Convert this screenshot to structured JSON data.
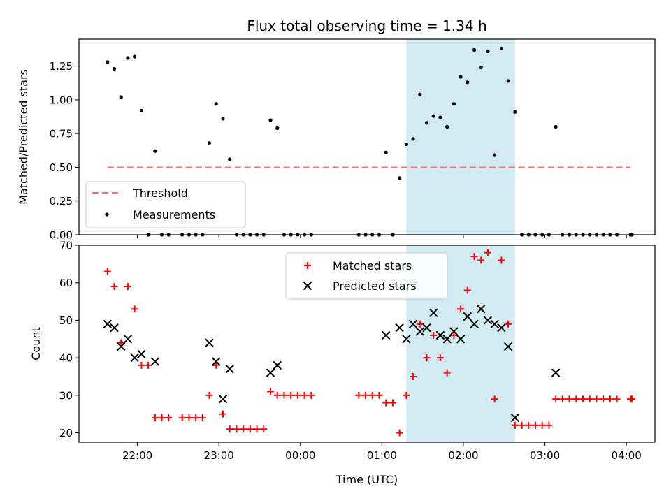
{
  "chart_data": [
    {
      "type": "scatter",
      "title": "Flux total observing time = 1.34 h",
      "xlabel": "",
      "ylabel": "Matched/Predicted stars",
      "xlim": [
        "21:17",
        "04:21"
      ],
      "ylim": [
        0,
        1.45
      ],
      "yticks": [
        "0.00",
        "0.25",
        "0.50",
        "0.75",
        "1.00",
        "1.25"
      ],
      "grid": false,
      "legend_placement": "lower-left",
      "highlight_span": {
        "x0": "01:18",
        "x1": "02:38",
        "color": "#add8e6"
      },
      "threshold": {
        "name": "Threshold",
        "y": 0.5,
        "x0": "21:38",
        "x1": "04:03",
        "color": "#ff7070"
      },
      "series": [
        {
          "name": "Measurements",
          "color": "#000000",
          "points": [
            [
              "21:38",
              1.28
            ],
            [
              "21:43",
              1.23
            ],
            [
              "21:48",
              1.02
            ],
            [
              "21:53",
              1.31
            ],
            [
              "21:58",
              1.32
            ],
            [
              "22:03",
              0.92
            ],
            [
              "22:08",
              0.0
            ],
            [
              "22:13",
              0.62
            ],
            [
              "22:18",
              0.0
            ],
            [
              "22:23",
              0.0
            ],
            [
              "22:33",
              0.0
            ],
            [
              "22:38",
              0.0
            ],
            [
              "22:43",
              0.0
            ],
            [
              "22:48",
              0.0
            ],
            [
              "22:53",
              0.68
            ],
            [
              "22:58",
              0.97
            ],
            [
              "23:03",
              0.86
            ],
            [
              "23:08",
              0.56
            ],
            [
              "23:13",
              0.0
            ],
            [
              "23:18",
              0.0
            ],
            [
              "23:23",
              0.0
            ],
            [
              "23:28",
              0.0
            ],
            [
              "23:33",
              0.0
            ],
            [
              "23:38",
              0.85
            ],
            [
              "23:43",
              0.79
            ],
            [
              "23:48",
              0.0
            ],
            [
              "23:53",
              0.0
            ],
            [
              "23:58",
              0.0
            ],
            [
              "00:03",
              0.0
            ],
            [
              "00:08",
              0.0
            ],
            [
              "00:43",
              0.0
            ],
            [
              "00:48",
              0.0
            ],
            [
              "00:53",
              0.0
            ],
            [
              "00:58",
              0.0
            ],
            [
              "01:03",
              0.61
            ],
            [
              "01:08",
              0.0
            ],
            [
              "01:13",
              0.42
            ],
            [
              "01:18",
              0.67
            ],
            [
              "01:23",
              0.71
            ],
            [
              "01:28",
              1.04
            ],
            [
              "01:33",
              0.83
            ],
            [
              "01:38",
              0.88
            ],
            [
              "01:43",
              0.87
            ],
            [
              "01:48",
              0.8
            ],
            [
              "01:53",
              0.97
            ],
            [
              "01:58",
              1.17
            ],
            [
              "02:03",
              1.13
            ],
            [
              "02:08",
              1.37
            ],
            [
              "02:13",
              1.24
            ],
            [
              "02:18",
              1.36
            ],
            [
              "02:23",
              0.59
            ],
            [
              "02:28",
              1.38
            ],
            [
              "02:33",
              1.14
            ],
            [
              "02:38",
              0.91
            ],
            [
              "02:43",
              0.0
            ],
            [
              "02:48",
              0.0
            ],
            [
              "02:53",
              0.0
            ],
            [
              "02:58",
              0.0
            ],
            [
              "03:03",
              0.0
            ],
            [
              "03:08",
              0.8
            ],
            [
              "03:13",
              0.0
            ],
            [
              "03:18",
              0.0
            ],
            [
              "03:23",
              0.0
            ],
            [
              "03:28",
              0.0
            ],
            [
              "03:33",
              0.0
            ],
            [
              "03:38",
              0.0
            ],
            [
              "03:43",
              0.0
            ],
            [
              "03:48",
              0.0
            ],
            [
              "03:53",
              0.0
            ],
            [
              "04:03",
              0.0
            ],
            [
              "04:04",
              0.0
            ]
          ]
        }
      ]
    },
    {
      "type": "scatter",
      "title": "",
      "xlabel": "Time (UTC)",
      "ylabel": "Count",
      "xlim": [
        "21:17",
        "04:21"
      ],
      "ylim": [
        17.5,
        70
      ],
      "yticks": [
        "20",
        "30",
        "40",
        "50",
        "60",
        "70"
      ],
      "xticks": [
        "22:00",
        "23:00",
        "00:00",
        "01:00",
        "02:00",
        "03:00",
        "04:00"
      ],
      "grid": false,
      "legend_placement": "upper-center",
      "highlight_span": {
        "x0": "01:18",
        "x1": "02:38",
        "color": "#add8e6"
      },
      "series": [
        {
          "name": "Matched stars",
          "marker": "+",
          "color": "#ff0000",
          "points": [
            [
              "21:38",
              63
            ],
            [
              "21:43",
              59
            ],
            [
              "21:48",
              44
            ],
            [
              "21:53",
              59
            ],
            [
              "21:58",
              53
            ],
            [
              "22:03",
              38
            ],
            [
              "22:08",
              38
            ],
            [
              "22:13",
              24
            ],
            [
              "22:18",
              24
            ],
            [
              "22:23",
              24
            ],
            [
              "22:33",
              24
            ],
            [
              "22:38",
              24
            ],
            [
              "22:43",
              24
            ],
            [
              "22:48",
              24
            ],
            [
              "22:53",
              30
            ],
            [
              "22:58",
              38
            ],
            [
              "23:03",
              25
            ],
            [
              "23:08",
              21
            ],
            [
              "23:13",
              21
            ],
            [
              "23:18",
              21
            ],
            [
              "23:23",
              21
            ],
            [
              "23:28",
              21
            ],
            [
              "23:33",
              21
            ],
            [
              "23:38",
              31
            ],
            [
              "23:43",
              30
            ],
            [
              "23:48",
              30
            ],
            [
              "23:53",
              30
            ],
            [
              "23:58",
              30
            ],
            [
              "00:03",
              30
            ],
            [
              "00:08",
              30
            ],
            [
              "00:43",
              30
            ],
            [
              "00:48",
              30
            ],
            [
              "00:53",
              30
            ],
            [
              "00:58",
              30
            ],
            [
              "01:03",
              28
            ],
            [
              "01:08",
              28
            ],
            [
              "01:13",
              20
            ],
            [
              "01:18",
              30
            ],
            [
              "01:23",
              35
            ],
            [
              "01:28",
              49
            ],
            [
              "01:33",
              40
            ],
            [
              "01:38",
              46
            ],
            [
              "01:43",
              40
            ],
            [
              "01:48",
              36
            ],
            [
              "01:53",
              46
            ],
            [
              "01:58",
              53
            ],
            [
              "02:03",
              58
            ],
            [
              "02:08",
              67
            ],
            [
              "02:13",
              66
            ],
            [
              "02:18",
              68
            ],
            [
              "02:23",
              29
            ],
            [
              "02:28",
              66
            ],
            [
              "02:33",
              49
            ],
            [
              "02:38",
              22
            ],
            [
              "02:43",
              22
            ],
            [
              "02:48",
              22
            ],
            [
              "02:53",
              22
            ],
            [
              "02:58",
              22
            ],
            [
              "03:03",
              22
            ],
            [
              "03:08",
              29
            ],
            [
              "03:13",
              29
            ],
            [
              "03:18",
              29
            ],
            [
              "03:23",
              29
            ],
            [
              "03:28",
              29
            ],
            [
              "03:33",
              29
            ],
            [
              "03:38",
              29
            ],
            [
              "03:43",
              29
            ],
            [
              "03:48",
              29
            ],
            [
              "03:53",
              29
            ],
            [
              "04:03",
              29
            ],
            [
              "04:04",
              29
            ]
          ]
        },
        {
          "name": "Predicted stars",
          "marker": "x",
          "color": "#000000",
          "points": [
            [
              "21:38",
              49
            ],
            [
              "21:43",
              48
            ],
            [
              "21:48",
              43
            ],
            [
              "21:53",
              45
            ],
            [
              "21:58",
              40
            ],
            [
              "22:03",
              41
            ],
            [
              "22:13",
              39
            ],
            [
              "22:53",
              44
            ],
            [
              "22:58",
              39
            ],
            [
              "23:03",
              29
            ],
            [
              "23:08",
              37
            ],
            [
              "23:38",
              36
            ],
            [
              "23:43",
              38
            ],
            [
              "01:03",
              46
            ],
            [
              "01:13",
              48
            ],
            [
              "01:18",
              45
            ],
            [
              "01:23",
              49
            ],
            [
              "01:28",
              47
            ],
            [
              "01:33",
              48
            ],
            [
              "01:38",
              52
            ],
            [
              "01:43",
              46
            ],
            [
              "01:48",
              45
            ],
            [
              "01:53",
              47
            ],
            [
              "01:58",
              45
            ],
            [
              "02:03",
              51
            ],
            [
              "02:08",
              49
            ],
            [
              "02:13",
              53
            ],
            [
              "02:18",
              50
            ],
            [
              "02:23",
              49
            ],
            [
              "02:28",
              48
            ],
            [
              "02:33",
              43
            ],
            [
              "02:38",
              24
            ],
            [
              "03:08",
              36
            ]
          ]
        }
      ]
    }
  ]
}
